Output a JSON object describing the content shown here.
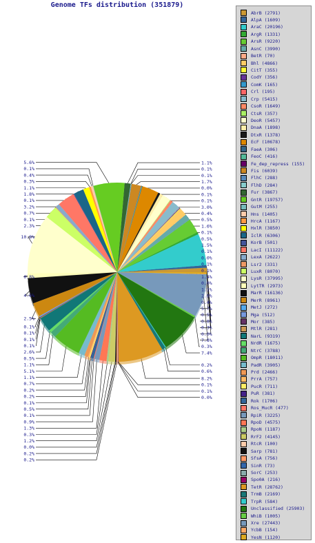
{
  "chart_data": {
    "type": "pie",
    "title": "Genome TFs distribution (351879)",
    "legend_position": "right",
    "categories": [
      "AbrB (2791)",
      "AlpA (1609)",
      "AraC (20196)",
      "ArgR (1331)",
      "ArsR (9220)",
      "AsnC (3990)",
      "BetR (70)",
      "Bhl (4866)",
      "CitT (355)",
      "CodY (356)",
      "ComK (165)",
      "Crl (195)",
      "Crp (5415)",
      "CsoR (1649)",
      "CtsR (357)",
      "DeoR (5457)",
      "DnaA (1898)",
      "DtxR (1378)",
      "EcF (10678)",
      "FaeA (306)",
      "FeoC (416)",
      "Fe_dep_repress (155)",
      "Fis (6039)",
      "FlhC (288)",
      "FlhD (284)",
      "Fur (3867)",
      "GntR (19757)",
      "GutM (255)",
      "Hns (1405)",
      "HrcA (1167)",
      "HxlR (3850)",
      "IclR (6306)",
      "KorB (501)",
      "LacI (11122)",
      "LexA (2622)",
      "Lsr2 (331)",
      "LuxR (8070)",
      "LysR (37995)",
      "LytTR (2973)",
      "MarR (16136)",
      "MerR (8961)",
      "MetJ (272)",
      "Mga (512)",
      "Mor (385)",
      "MtlR (281)",
      "NarL (9319)",
      "NrdR (1675)",
      "NtrC (3788)",
      "OmpR (18011)",
      "PadR (3905)",
      "Prd (2466)",
      "PrrA (757)",
      "PucR (711)",
      "PuR (381)",
      "Rok (1706)",
      "Ros_MucR (477)",
      "RpiR (3225)",
      "RpoD (4575)",
      "RpoN (1187)",
      "RrF2 (4145)",
      "RtcR (100)",
      "Sarp (781)",
      "SfsA (756)",
      "SinR (73)",
      "SorC (253)",
      "Spo0A (216)",
      "TetR (28762)",
      "TrmB (2169)",
      "TrpR (584)",
      "Unclassified (25903)",
      "WhiB (1005)",
      "Xre (27443)",
      "YcbB (154)",
      "YesN (1120)"
    ],
    "values": [
      2791,
      1609,
      20196,
      1331,
      9220,
      3990,
      70,
      4866,
      355,
      356,
      165,
      195,
      5415,
      1649,
      357,
      5457,
      1898,
      1378,
      10678,
      306,
      416,
      155,
      6039,
      288,
      284,
      3867,
      19757,
      255,
      1405,
      1167,
      3850,
      6306,
      501,
      11122,
      2622,
      331,
      8070,
      37995,
      2973,
      16136,
      8961,
      272,
      512,
      385,
      281,
      9319,
      1675,
      3788,
      18011,
      3905,
      2466,
      757,
      711,
      381,
      1706,
      477,
      3225,
      4575,
      1187,
      4145,
      100,
      781,
      756,
      73,
      253,
      216,
      28762,
      2169,
      584,
      25903,
      1005,
      27443,
      154,
      1120
    ],
    "colors": [
      "#cc9933",
      "#336699",
      "#33cccc",
      "#33aa33",
      "#66cc33",
      "#66aaaa",
      "#ffaa88",
      "#ffcc66",
      "#ffff33",
      "#663399",
      "#3399cc",
      "#ff6666",
      "#88bbcc",
      "#ff8866",
      "#aaee66",
      "#ffffcc",
      "#ffeeaa",
      "#1a1a1a",
      "#dd8800",
      "#336688",
      "#55bb99",
      "#660066",
      "#cc8822",
      "#5588bb",
      "#88cccc",
      "#336633",
      "#66cc22",
      "#77bbbb",
      "#ffccaa",
      "#ff9944",
      "#ffff00",
      "#1a6688",
      "#445599",
      "#ff7766",
      "#88aacc",
      "#ee9966",
      "#ccff66",
      "#ffffcc",
      "#ffffbb",
      "#111111",
      "#cc8811",
      "#55aaee",
      "#7799dd",
      "#663366",
      "#cc9955",
      "#117777",
      "#66dd66",
      "#44aa77",
      "#55bb22",
      "#77bbcc",
      "#ee9955",
      "#ffbb66",
      "#ffee66",
      "#442288",
      "#336699",
      "#ff7766",
      "#7799bb",
      "#ff7755",
      "#aacc88",
      "#cccc66",
      "#ffccaa",
      "#111111",
      "#ff9966",
      "#3366aa",
      "#88aaaa",
      "#990066",
      "#dd9922",
      "#1a7777",
      "#33cccc",
      "#227711",
      "#66cc44",
      "#7799bb",
      "#ffaa66",
      "#ddaa22"
    ],
    "slice_labels": [
      "0.8%",
      "0.5%",
      "5.7%",
      "0.4%",
      "2.6%",
      "1.1%",
      "0.0%",
      "1.4%",
      "0.1%",
      "0.1%",
      "0.0%",
      "0.1%",
      "1.5%",
      "0.5%",
      "0.1%",
      "1.6%",
      "0.5%",
      "0.4%",
      "3.0%",
      "0.1%",
      "0.1%",
      "0.0%",
      "1.7%",
      "0.1%",
      "0.1%",
      "1.1%",
      "5.6%",
      "0.1%",
      "0.4%",
      "0.3%",
      "1.1%",
      "1.8%",
      "0.1%",
      "3.2%",
      "0.7%",
      "0.1%",
      "2.3%",
      "10.8%",
      "0.8%",
      "4.6%",
      "2.5%",
      "0.1%",
      "0.1%",
      "0.1%",
      "0.1%",
      "2.6%",
      "0.5%",
      "1.1%",
      "5.1%",
      "1.1%",
      "0.7%",
      "0.2%",
      "0.2%",
      "0.1%",
      "0.5%",
      "0.1%",
      "0.9%",
      "1.3%",
      "0.3%",
      "1.2%",
      "0.0%",
      "0.2%",
      "0.2%",
      "0.0%",
      "0.1%",
      "0.1%",
      "8.2%",
      "0.6%",
      "0.2%",
      "7.4%",
      "0.3%",
      "7.8%",
      "0.0%",
      "0.3%"
    ]
  }
}
